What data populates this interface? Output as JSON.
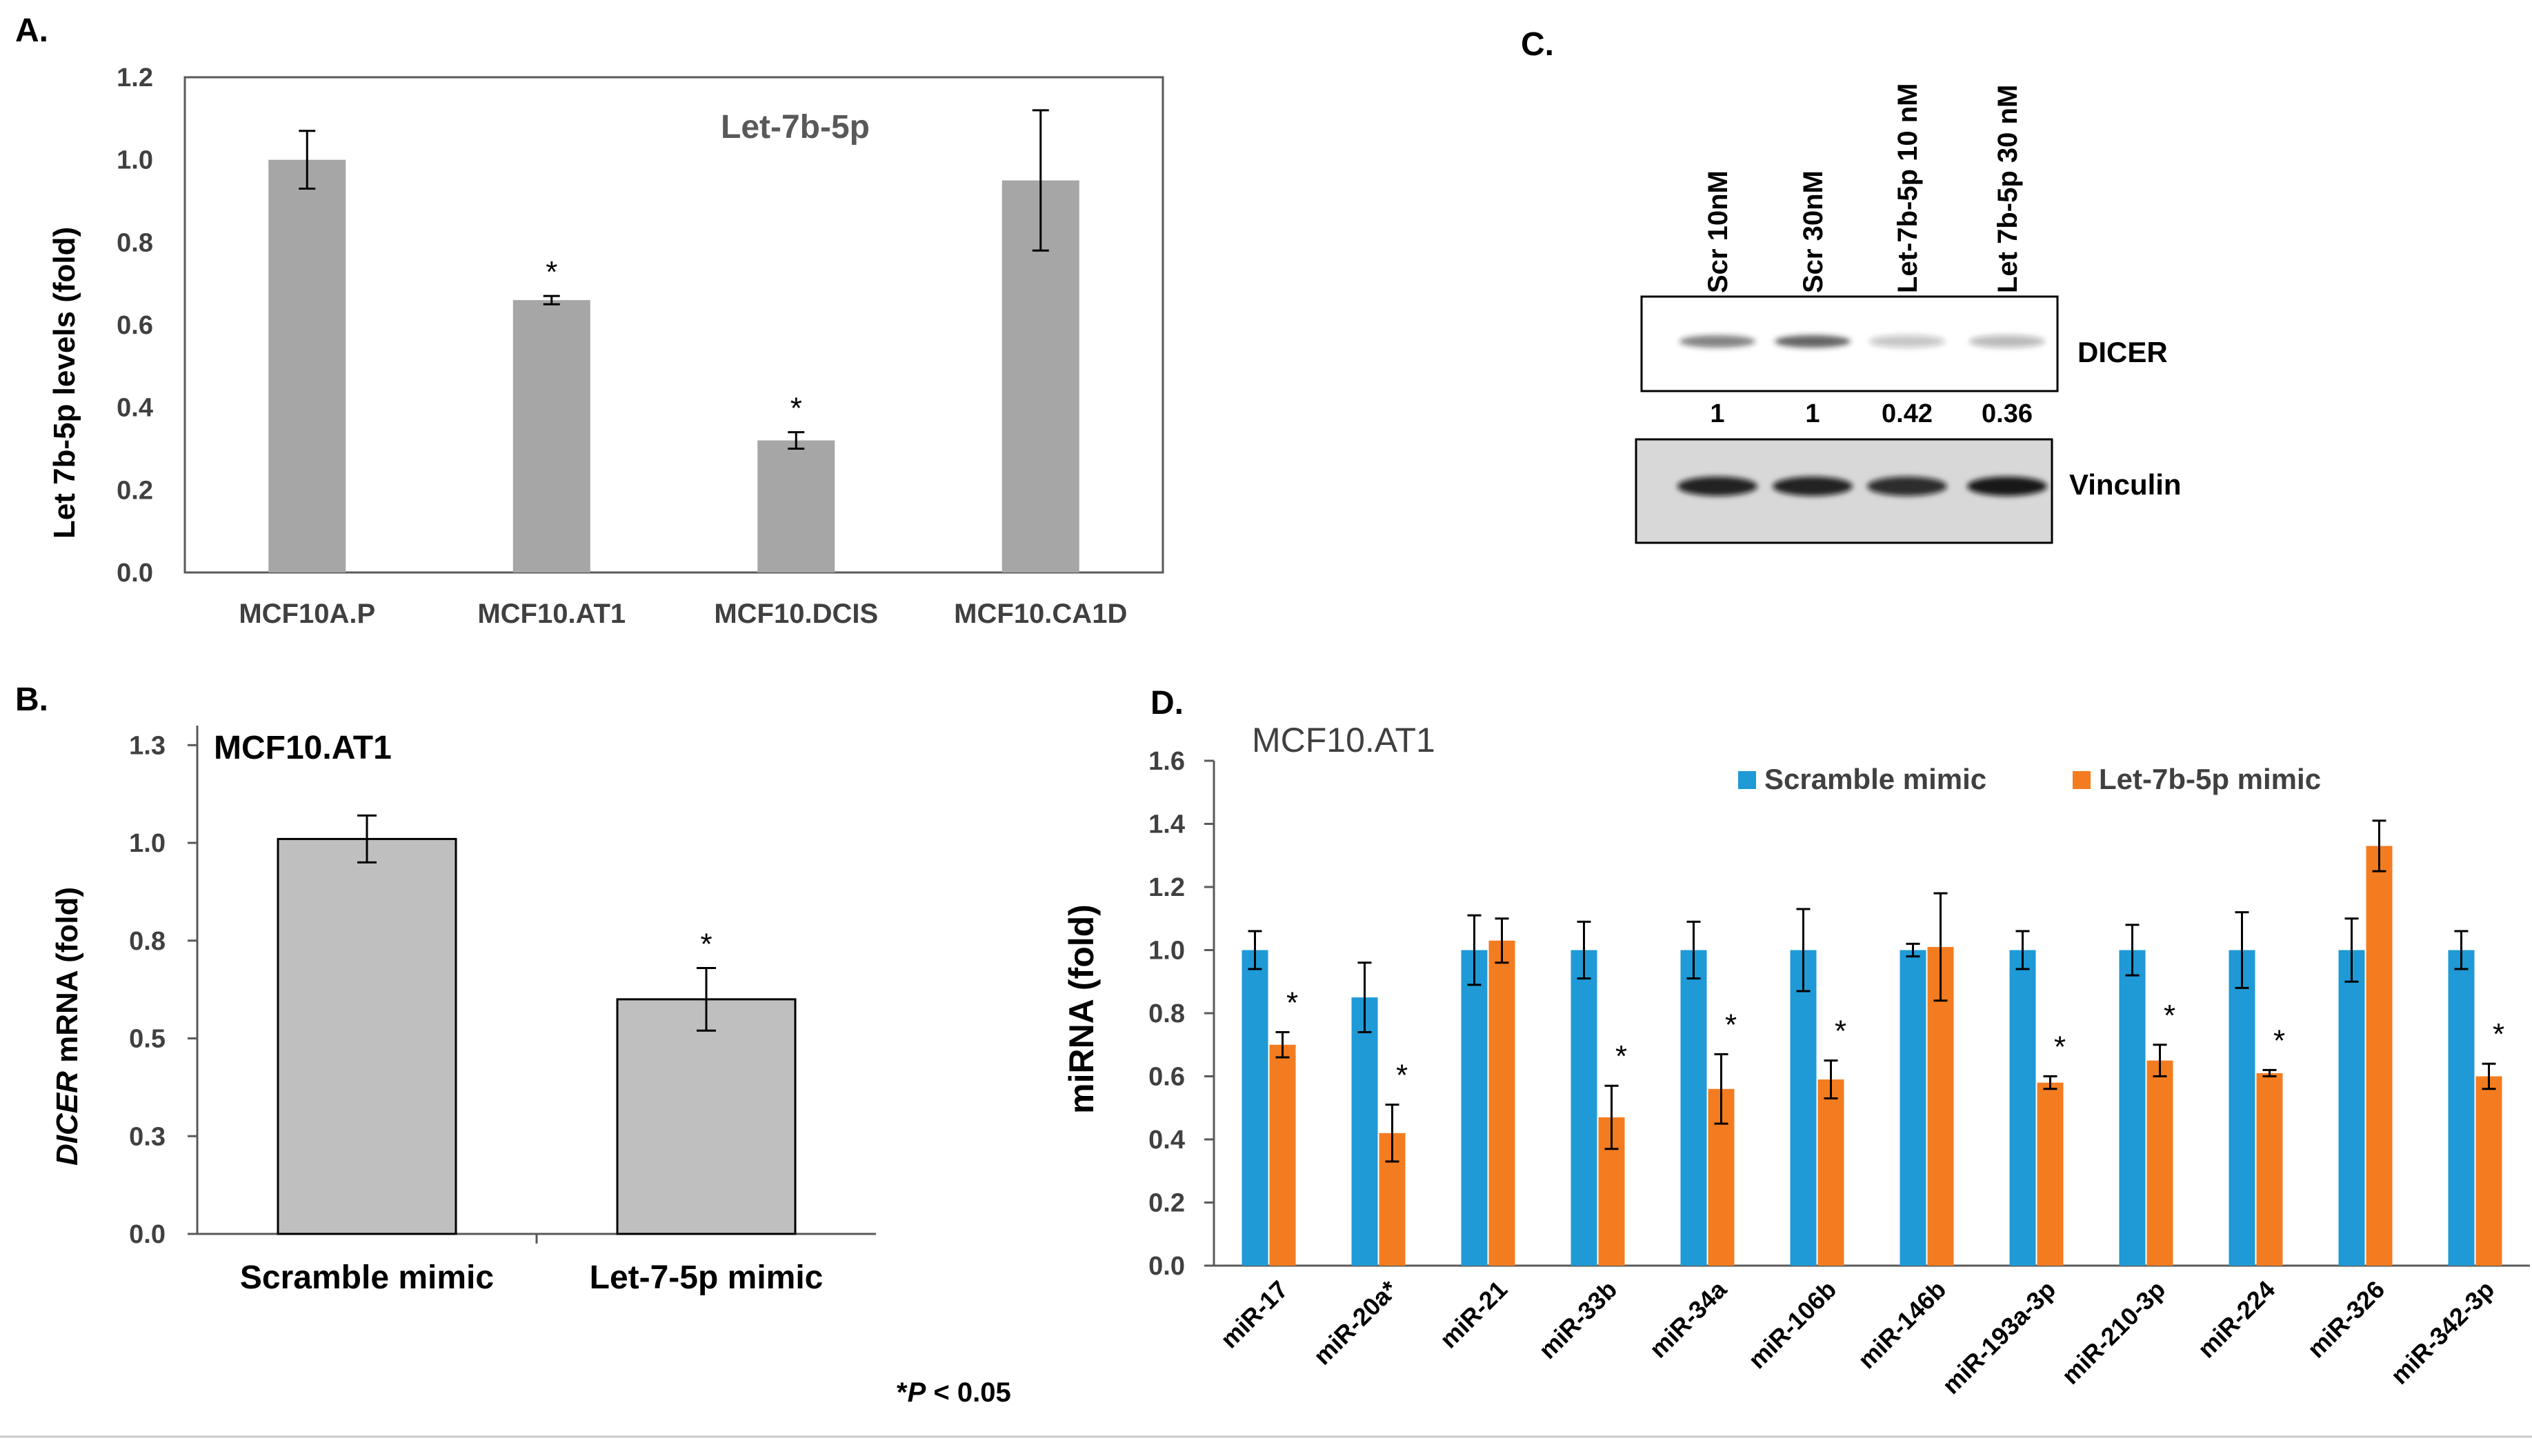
{
  "chart_data": [
    {
      "panel": "A.",
      "type": "bar",
      "title": "Let-7b-5p",
      "ylabel": "Let 7b-5p levels (fold)",
      "ylim": [
        0,
        1.2
      ],
      "yticks": [
        "0.0",
        "0.2",
        "0.4",
        "0.6",
        "0.8",
        "1.0",
        "1.2"
      ],
      "categories": [
        "MCF10A.P",
        "MCF10.AT1",
        "MCF10.DCIS",
        "MCF10.CA1D"
      ],
      "values": [
        1.0,
        0.66,
        0.32,
        0.95
      ],
      "errors": [
        0.07,
        0.01,
        0.02,
        0.17
      ],
      "significance": [
        "",
        "*",
        "*",
        ""
      ],
      "color": "#a6a6a6"
    },
    {
      "panel": "B.",
      "type": "bar",
      "title": "MCF10.AT1",
      "ylabel_italic": "DICER",
      "ylabel_rest": " mRNA (fold)",
      "ylim": [
        0,
        1.3
      ],
      "yticks": [
        "0.0",
        "0.3",
        "0.5",
        "0.8",
        "1.0",
        "1.3"
      ],
      "ytick_values": [
        0.0,
        0.25,
        0.5,
        0.75,
        1.0,
        1.25
      ],
      "categories": [
        "Scramble mimic",
        "Let-7-5p mimic"
      ],
      "values": [
        1.01,
        0.6
      ],
      "errors": [
        0.06,
        0.08
      ],
      "significance": [
        "",
        "*"
      ],
      "color": "#bfbfbf",
      "footnote_prefix": "*",
      "footnote_italic": "P",
      "footnote_rest": " < 0.05"
    },
    {
      "panel": "D.",
      "type": "bar",
      "title": "MCF10.AT1",
      "ylabel": "miRNA (fold)",
      "ylim": [
        0,
        1.6
      ],
      "yticks": [
        "0.0",
        "0.2",
        "0.4",
        "0.6",
        "0.8",
        "1.0",
        "1.2",
        "1.4",
        "1.6"
      ],
      "categories": [
        "miR-17",
        "miR-20a*",
        "miR-21",
        "miR-33b",
        "miR-34a",
        "miR-106b",
        "miR-146b",
        "miR-193a-3p",
        "miR-210-3p",
        "miR-224",
        "miR-326",
        "miR-342-3p"
      ],
      "series": [
        {
          "name": "Scramble mimic",
          "color": "#1f9ad6",
          "values": [
            1.0,
            0.85,
            1.0,
            1.0,
            1.0,
            1.0,
            1.0,
            1.0,
            1.0,
            1.0,
            1.0,
            1.0
          ],
          "errors": [
            0.06,
            0.11,
            0.11,
            0.09,
            0.09,
            0.13,
            0.02,
            0.06,
            0.08,
            0.12,
            0.1,
            0.06
          ]
        },
        {
          "name": "Let-7b-5p mimic",
          "color": "#f47c20",
          "values": [
            0.7,
            0.42,
            1.03,
            0.47,
            0.56,
            0.59,
            1.01,
            0.58,
            0.65,
            0.61,
            1.33,
            0.6
          ],
          "errors": [
            0.04,
            0.09,
            0.07,
            0.1,
            0.11,
            0.06,
            0.17,
            0.02,
            0.05,
            0.01,
            0.08,
            0.04
          ]
        }
      ],
      "significance": [
        "*",
        "*",
        "",
        "*",
        "*",
        "*",
        "",
        "*",
        "*",
        "*",
        "",
        "*"
      ]
    }
  ],
  "western_blot": {
    "panel": "C.",
    "lanes": [
      "Scr 10nM",
      "Scr 30nM",
      "Let-7b-5p 10 nM",
      "Let 7b-5p 30 nM"
    ],
    "rows": [
      {
        "label": "DICER",
        "quantification": [
          "1",
          "1",
          "0.42",
          "0.36"
        ],
        "band_intensity": [
          0.55,
          0.7,
          0.25,
          0.3
        ]
      },
      {
        "label": "Vinculin",
        "band_intensity": [
          0.9,
          0.9,
          0.85,
          0.95
        ]
      }
    ]
  }
}
